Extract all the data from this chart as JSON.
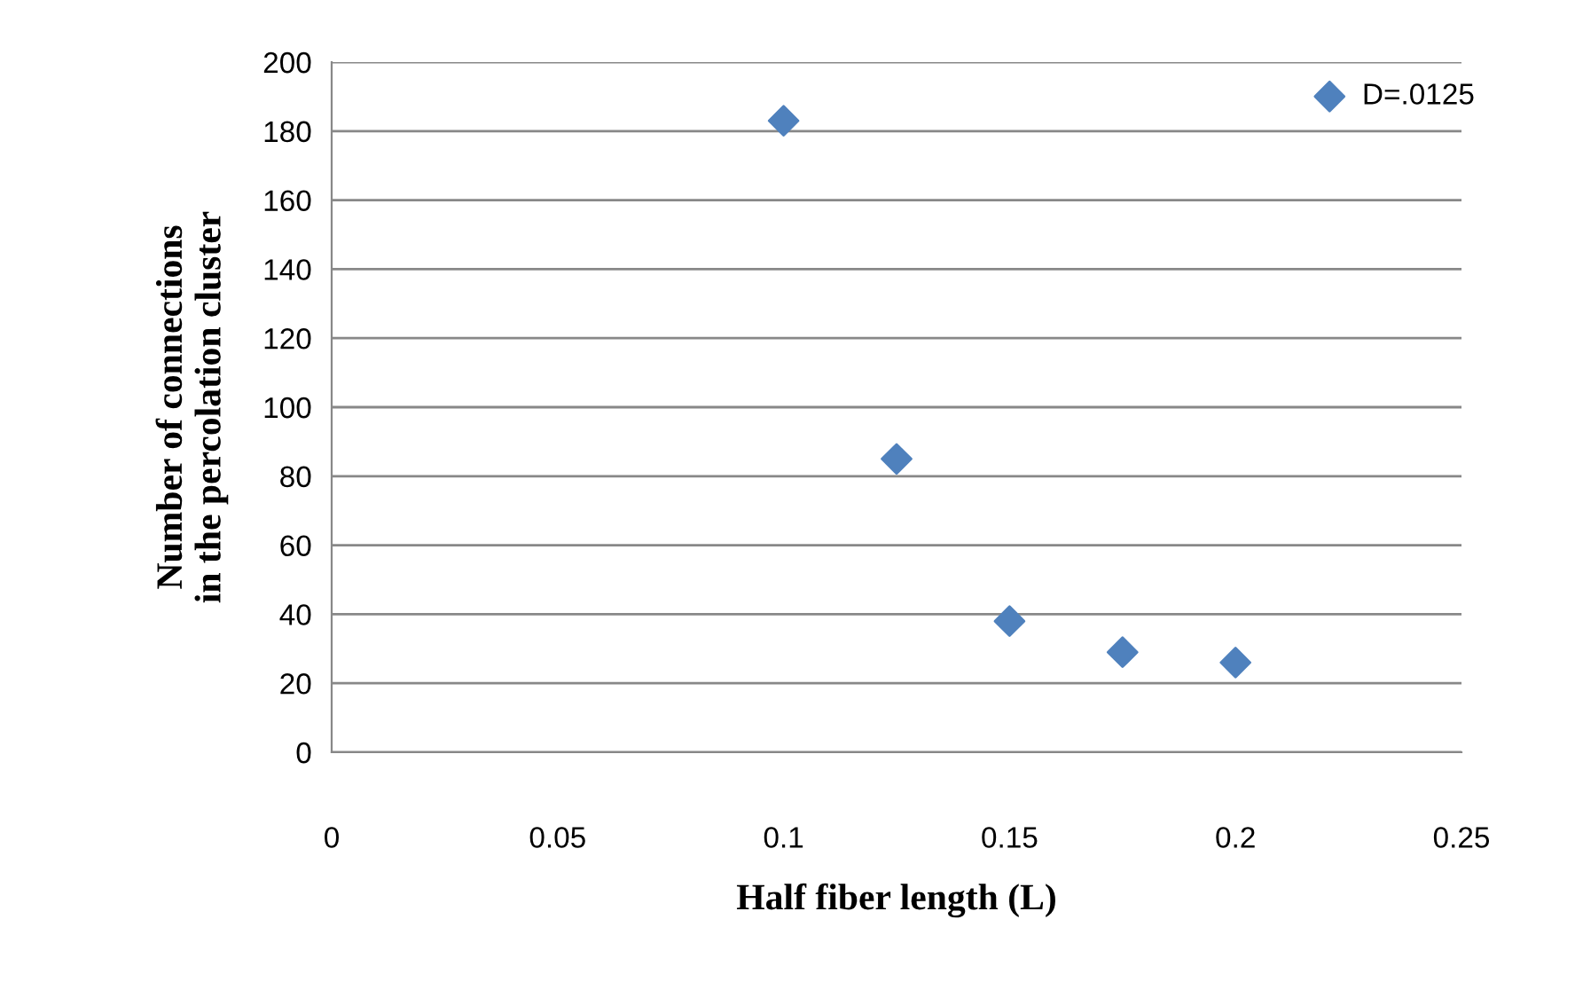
{
  "chart_data": {
    "type": "scatter",
    "xlabel": "Half fiber length (L)",
    "ylabel": "Number of connections\nin the percolation cluster",
    "x": [
      0.1,
      0.125,
      0.15,
      0.175,
      0.2
    ],
    "series": [
      {
        "name": "D=.0125",
        "color": "#4f81bd",
        "values": [
          183,
          85,
          38,
          29,
          26
        ]
      }
    ],
    "xlim": [
      0,
      0.25
    ],
    "xticks": [
      0,
      0.05,
      0.1,
      0.15,
      0.2,
      0.25
    ],
    "ylim": [
      0,
      200
    ],
    "yticks": [
      0,
      20,
      40,
      60,
      80,
      100,
      120,
      140,
      160,
      180,
      200
    ],
    "grid": "y",
    "legend": "top right",
    "marker": "diamond"
  }
}
